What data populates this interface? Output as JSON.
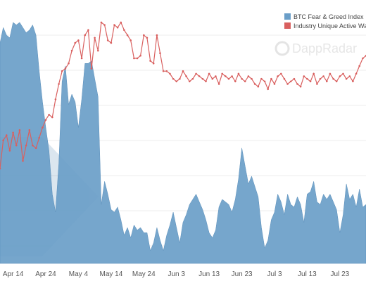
{
  "watermark": {
    "text": "DappRadar",
    "icon": "dappradar-logo-icon"
  },
  "chart_data": {
    "type": "area+line",
    "title": "",
    "xlabel": "",
    "ylabel": "",
    "x_ticks": [
      "Apr 14",
      "Apr 24",
      "May 4",
      "May 14",
      "May 24",
      "Jun 3",
      "Jun 13",
      "Jun 23",
      "Jul 3",
      "Jul 13",
      "Jul 23"
    ],
    "grid": "horizontal",
    "legend_placement": "top-right",
    "colors": {
      "area": "#6a9ec8",
      "line": "#d9605f"
    },
    "series": [
      {
        "name": "BTC Fear & Greed Index",
        "kind": "area",
        "start": "2022-04-10",
        "ylim": [
          0,
          100
        ],
        "values": [
          86,
          92,
          89,
          88,
          94,
          93,
          94,
          92,
          90,
          91,
          93,
          89,
          75,
          63,
          53,
          44,
          27,
          20,
          39,
          71,
          77,
          62,
          66,
          63,
          53,
          64,
          78,
          78,
          79,
          72,
          65,
          23,
          32,
          27,
          21,
          20,
          22,
          17,
          11,
          14,
          10,
          15,
          13,
          14,
          12,
          12,
          5,
          8,
          14,
          9,
          5,
          11,
          15,
          20,
          14,
          8,
          16,
          19,
          23,
          25,
          27,
          24,
          21,
          17,
          12,
          10,
          13,
          22,
          25,
          24,
          23,
          20,
          25,
          33,
          45,
          38,
          31,
          34,
          30,
          26,
          14,
          6,
          9,
          17,
          20,
          27,
          24,
          19,
          27,
          23,
          22,
          26,
          23,
          16,
          27,
          28,
          32,
          24,
          23,
          27,
          25,
          27,
          24,
          21,
          12,
          19,
          31,
          25,
          27,
          22,
          29,
          22,
          23
        ]
      },
      {
        "name": "Industry Unique Active Wallets",
        "kind": "line",
        "start": "2022-04-10",
        "ylim": [
          0,
          100
        ],
        "values": [
          37,
          48,
          50,
          44,
          51,
          46,
          52,
          40,
          46,
          52,
          46,
          45,
          49,
          53,
          56,
          58,
          57,
          64,
          70,
          75,
          76,
          78,
          83,
          86,
          87,
          80,
          89,
          91,
          76,
          88,
          83,
          94,
          93,
          87,
          86,
          93,
          92,
          94,
          91,
          89,
          87,
          80,
          80,
          81,
          89,
          88,
          79,
          78,
          89,
          82,
          75,
          75,
          74,
          72,
          71,
          72,
          75,
          73,
          71,
          72,
          74,
          73,
          72,
          71,
          74,
          72,
          73,
          70,
          74,
          73,
          72,
          73,
          71,
          74,
          72,
          71,
          73,
          72,
          70,
          69,
          72,
          71,
          68,
          72,
          70,
          73,
          74,
          72,
          70,
          71,
          72,
          70,
          69,
          73,
          72,
          71,
          74,
          70,
          72,
          73,
          71,
          74,
          72,
          71,
          73,
          74,
          72,
          73,
          71,
          74,
          77,
          80,
          81
        ]
      }
    ]
  }
}
